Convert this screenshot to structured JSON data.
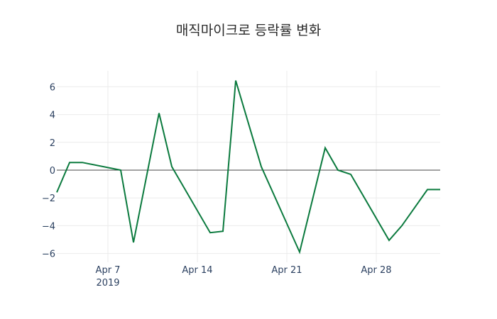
{
  "chart_data": {
    "type": "line",
    "title": "매직마이크로 등락률 변화",
    "xlabel": "",
    "ylabel": "",
    "x": [
      "2019-04-03",
      "2019-04-04",
      "2019-04-05",
      "2019-04-08",
      "2019-04-09",
      "2019-04-10",
      "2019-04-11",
      "2019-04-12",
      "2019-04-15",
      "2019-04-16",
      "2019-04-17",
      "2019-04-18",
      "2019-04-19",
      "2019-04-22",
      "2019-04-23",
      "2019-04-24",
      "2019-04-25",
      "2019-04-26",
      "2019-04-29",
      "2019-04-30",
      "2019-05-01",
      "2019-05-02",
      "2019-05-03"
    ],
    "series": [
      {
        "name": "등락률",
        "color": "#0b7a3e",
        "values": [
          -1.6,
          0.55,
          0.55,
          0.0,
          -5.2,
          -0.55,
          4.1,
          0.25,
          -4.5,
          -4.4,
          6.45,
          3.35,
          0.25,
          -5.9,
          -2.15,
          1.6,
          0.0,
          -0.3,
          -5.05,
          -4.0,
          -2.7,
          -1.4,
          -1.4
        ]
      }
    ],
    "x_range": [
      "2019-04-03",
      "2019-05-03"
    ],
    "ylim": [
      -6.7,
      7.1
    ],
    "y_ticks": [
      6,
      4,
      2,
      0,
      -2,
      -4,
      -6
    ],
    "y_tick_labels": [
      "6",
      "4",
      "2",
      "0",
      "−2",
      "−4",
      "−6"
    ],
    "x_ticks": [
      "2019-04-07",
      "2019-04-14",
      "2019-04-21",
      "2019-04-28"
    ],
    "x_tick_labels": [
      "Apr 7",
      "Apr 14",
      "Apr 21",
      "Apr 28"
    ],
    "x_tick_sublabel": "2019",
    "grid": true,
    "zero_line": true,
    "legend": "none"
  }
}
